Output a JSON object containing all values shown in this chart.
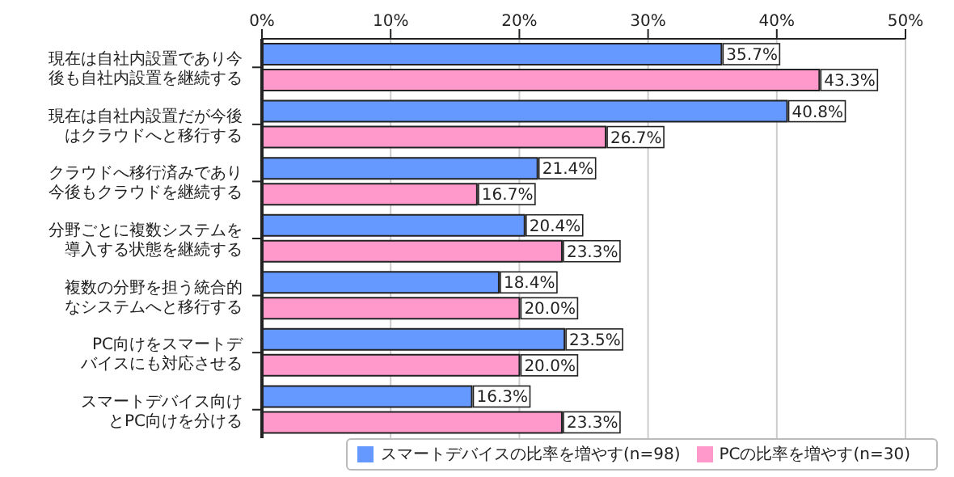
{
  "chart_data": {
    "type": "bar",
    "orientation": "horizontal",
    "categories": [
      "現在は自社内設置であり今後も自社内設置を継続する",
      "現在は自社内設置だが今後はクラウドへと移行する",
      "クラウドへ移行済みであり今後もクラウドを継続する",
      "分野ごとに複数システムを導入する状態を継続する",
      "複数の分野を担う統合的なシステムへと移行する",
      "PC向けをスマートデバイスにも対応させる",
      "スマートデバイス向けとPC向けを分ける"
    ],
    "series": [
      {
        "name": "スマートデバイスの比率を増やす(n=98)",
        "color": "#6699ff",
        "values": [
          35.7,
          40.8,
          21.4,
          20.4,
          18.4,
          23.5,
          16.3
        ],
        "value_labels": [
          "35.7%",
          "40.8%",
          "21.4%",
          "20.4%",
          "18.4%",
          "23.5%",
          "16.3%"
        ]
      },
      {
        "name": "PCの比率を増やす(n=30)",
        "color": "#ff99cc",
        "values": [
          43.3,
          26.7,
          16.7,
          23.3,
          20.0,
          20.0,
          23.3
        ],
        "value_labels": [
          "43.3%",
          "26.7%",
          "16.7%",
          "23.3%",
          "20.0%",
          "20.0%",
          "23.3%"
        ]
      }
    ],
    "xlim": [
      0,
      50
    ],
    "xticks": [
      {
        "value": 0,
        "label": "0%"
      },
      {
        "value": 10,
        "label": "10%"
      },
      {
        "value": 20,
        "label": "20%"
      },
      {
        "value": 30,
        "label": "30%"
      },
      {
        "value": 40,
        "label": "40%"
      },
      {
        "value": 50,
        "label": "50%"
      }
    ],
    "grid": "x",
    "legend": "bottom right"
  }
}
